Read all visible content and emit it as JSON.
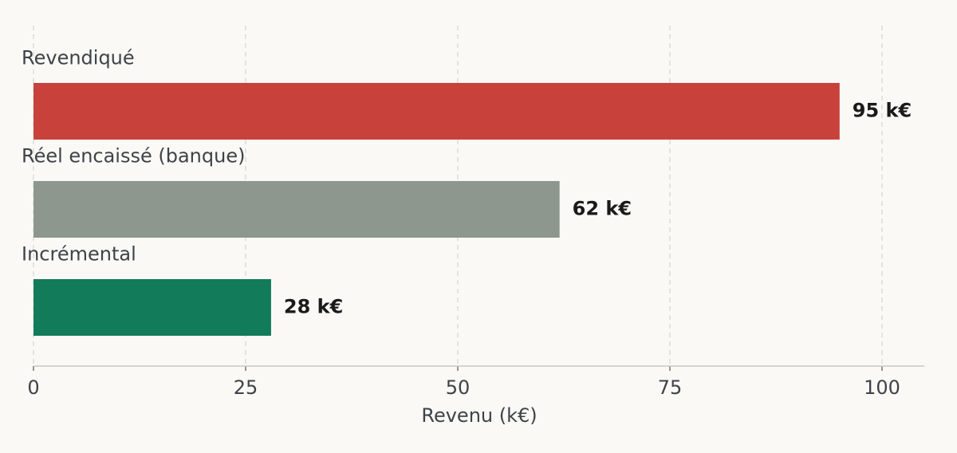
{
  "chart_data": {
    "type": "bar",
    "orientation": "horizontal",
    "categories": [
      "Revendiqué",
      "Réel encaissé (banque)",
      "Incrémental"
    ],
    "values": [
      95,
      62,
      28
    ],
    "value_labels": [
      "95 k€",
      "62 k€",
      "28 k€"
    ],
    "colors": [
      "#c8413b",
      "#8d978e",
      "#117b5a"
    ],
    "xlabel": "Revenu (k€)",
    "xlim": [
      0,
      105
    ],
    "xticks": [
      0,
      25,
      50,
      75,
      100
    ],
    "grid": true
  }
}
